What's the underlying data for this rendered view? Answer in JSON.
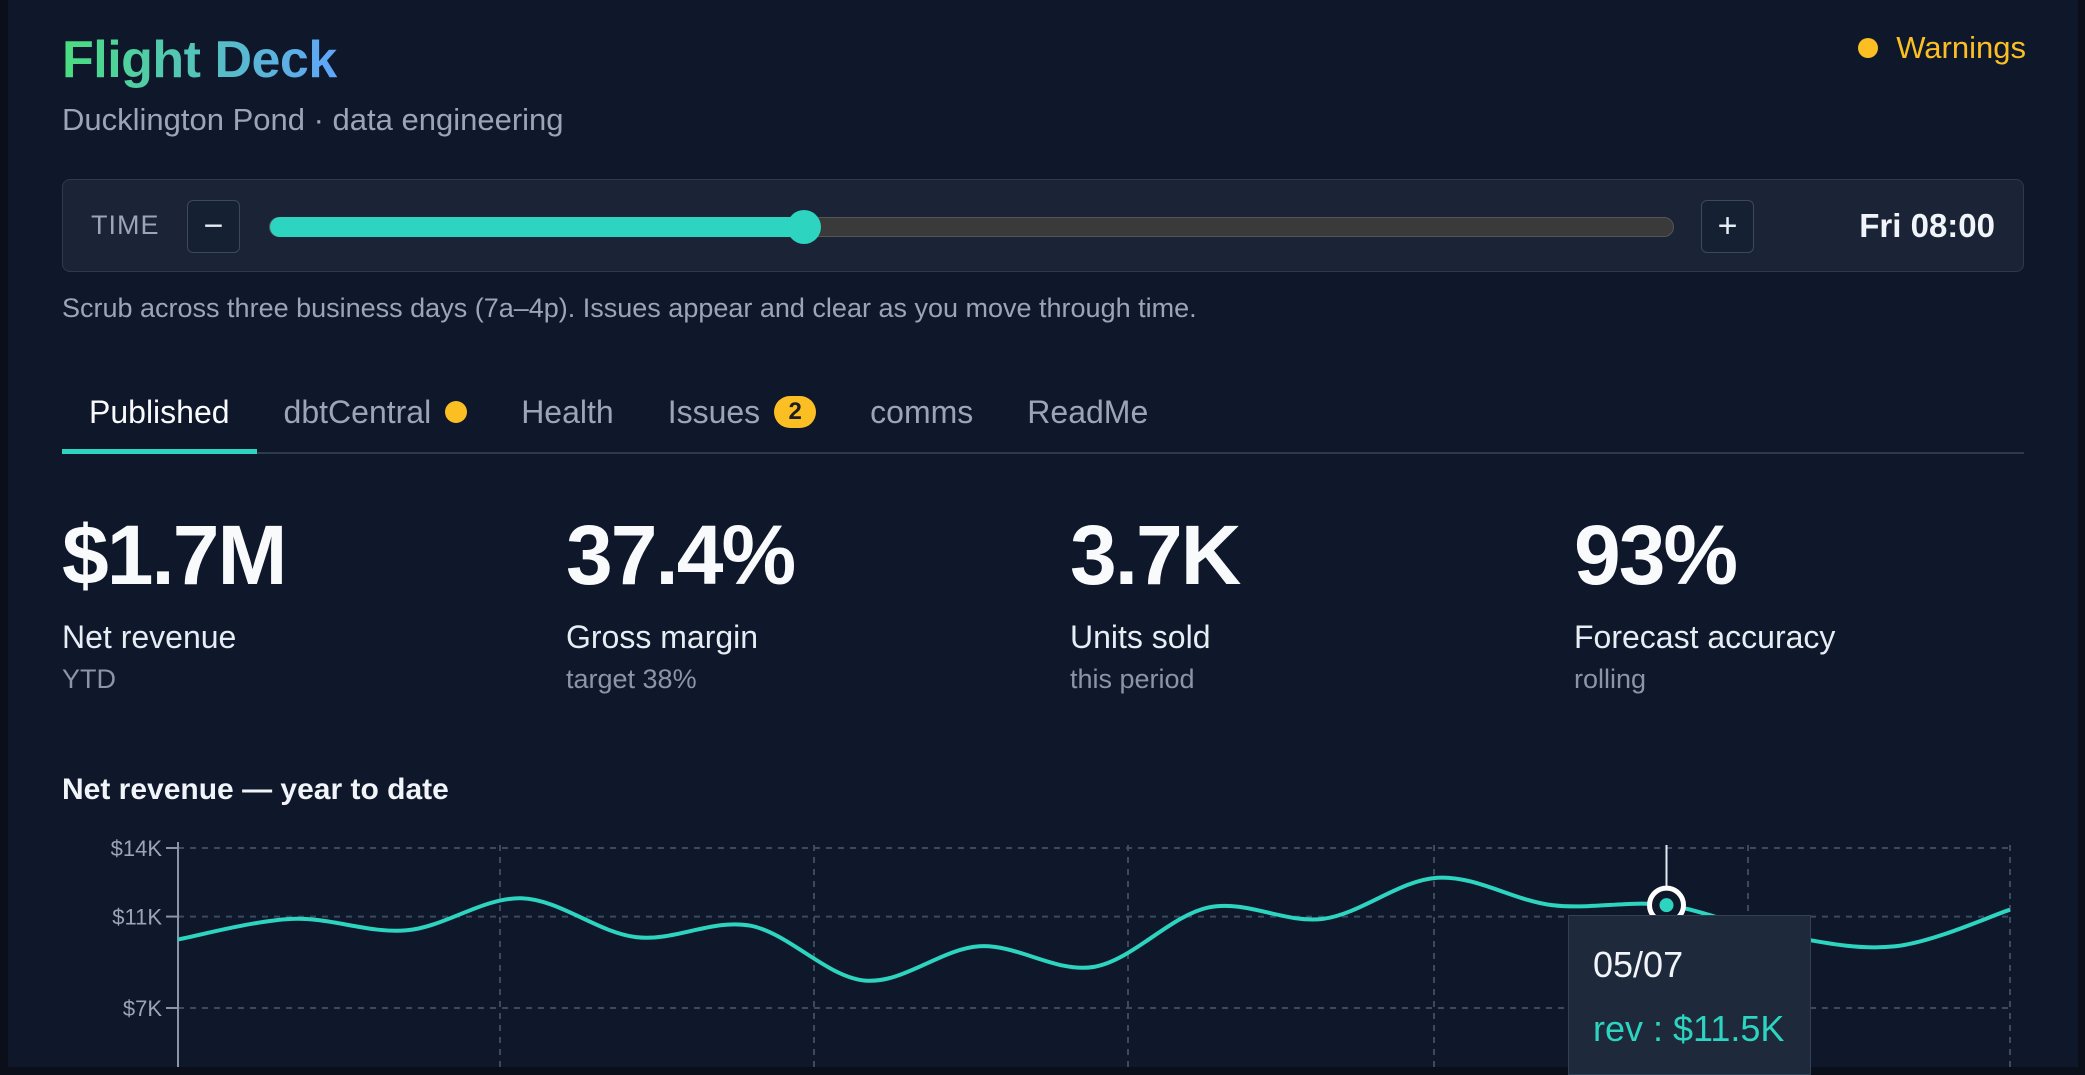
{
  "header": {
    "title": "Flight Deck",
    "subtitle": "Ducklington Pond · data engineering",
    "status_label": "Warnings",
    "status_color": "#fbbf24"
  },
  "time": {
    "label": "TIME",
    "minus_icon": "minus-icon",
    "plus_icon": "plus-icon",
    "value": "Fri 08:00",
    "slider_fraction": 0.38,
    "hint": "Scrub across three business days (7a–4p). Issues appear and clear as you move through time."
  },
  "tabs": [
    {
      "label": "Published",
      "active": true
    },
    {
      "label": "dbtCentral",
      "dot": true
    },
    {
      "label": "Health"
    },
    {
      "label": "Issues",
      "badge": "2"
    },
    {
      "label": "comms"
    },
    {
      "label": "ReadMe"
    }
  ],
  "kpis": [
    {
      "value": "$1.7M",
      "label": "Net revenue",
      "sub": "YTD"
    },
    {
      "value": "37.4%",
      "label": "Gross margin",
      "sub": "target 38%"
    },
    {
      "value": "3.7K",
      "label": "Units sold",
      "sub": "this period"
    },
    {
      "value": "93%",
      "label": "Forecast accuracy",
      "sub": "rolling"
    }
  ],
  "chart_data": {
    "type": "line",
    "title": "Net revenue — year to date",
    "yticks": [
      {
        "value": 14000,
        "label": "$14K"
      },
      {
        "value": 11000,
        "label": "$11K"
      },
      {
        "value": 7000,
        "label": "$7K"
      }
    ],
    "ylim_visible": [
      7000,
      14000
    ],
    "series": [
      {
        "color": "#2dd4bf",
        "values": [
          10000,
          10900,
          10400,
          11800,
          10100,
          10600,
          8200,
          9700,
          8800,
          11400,
          10900,
          12700,
          11500,
          11500,
          10200,
          9700,
          11300
        ]
      }
    ],
    "tooltip": {
      "date": "05/07",
      "text": "rev : $11.5K",
      "index": 13
    },
    "grid": true
  }
}
